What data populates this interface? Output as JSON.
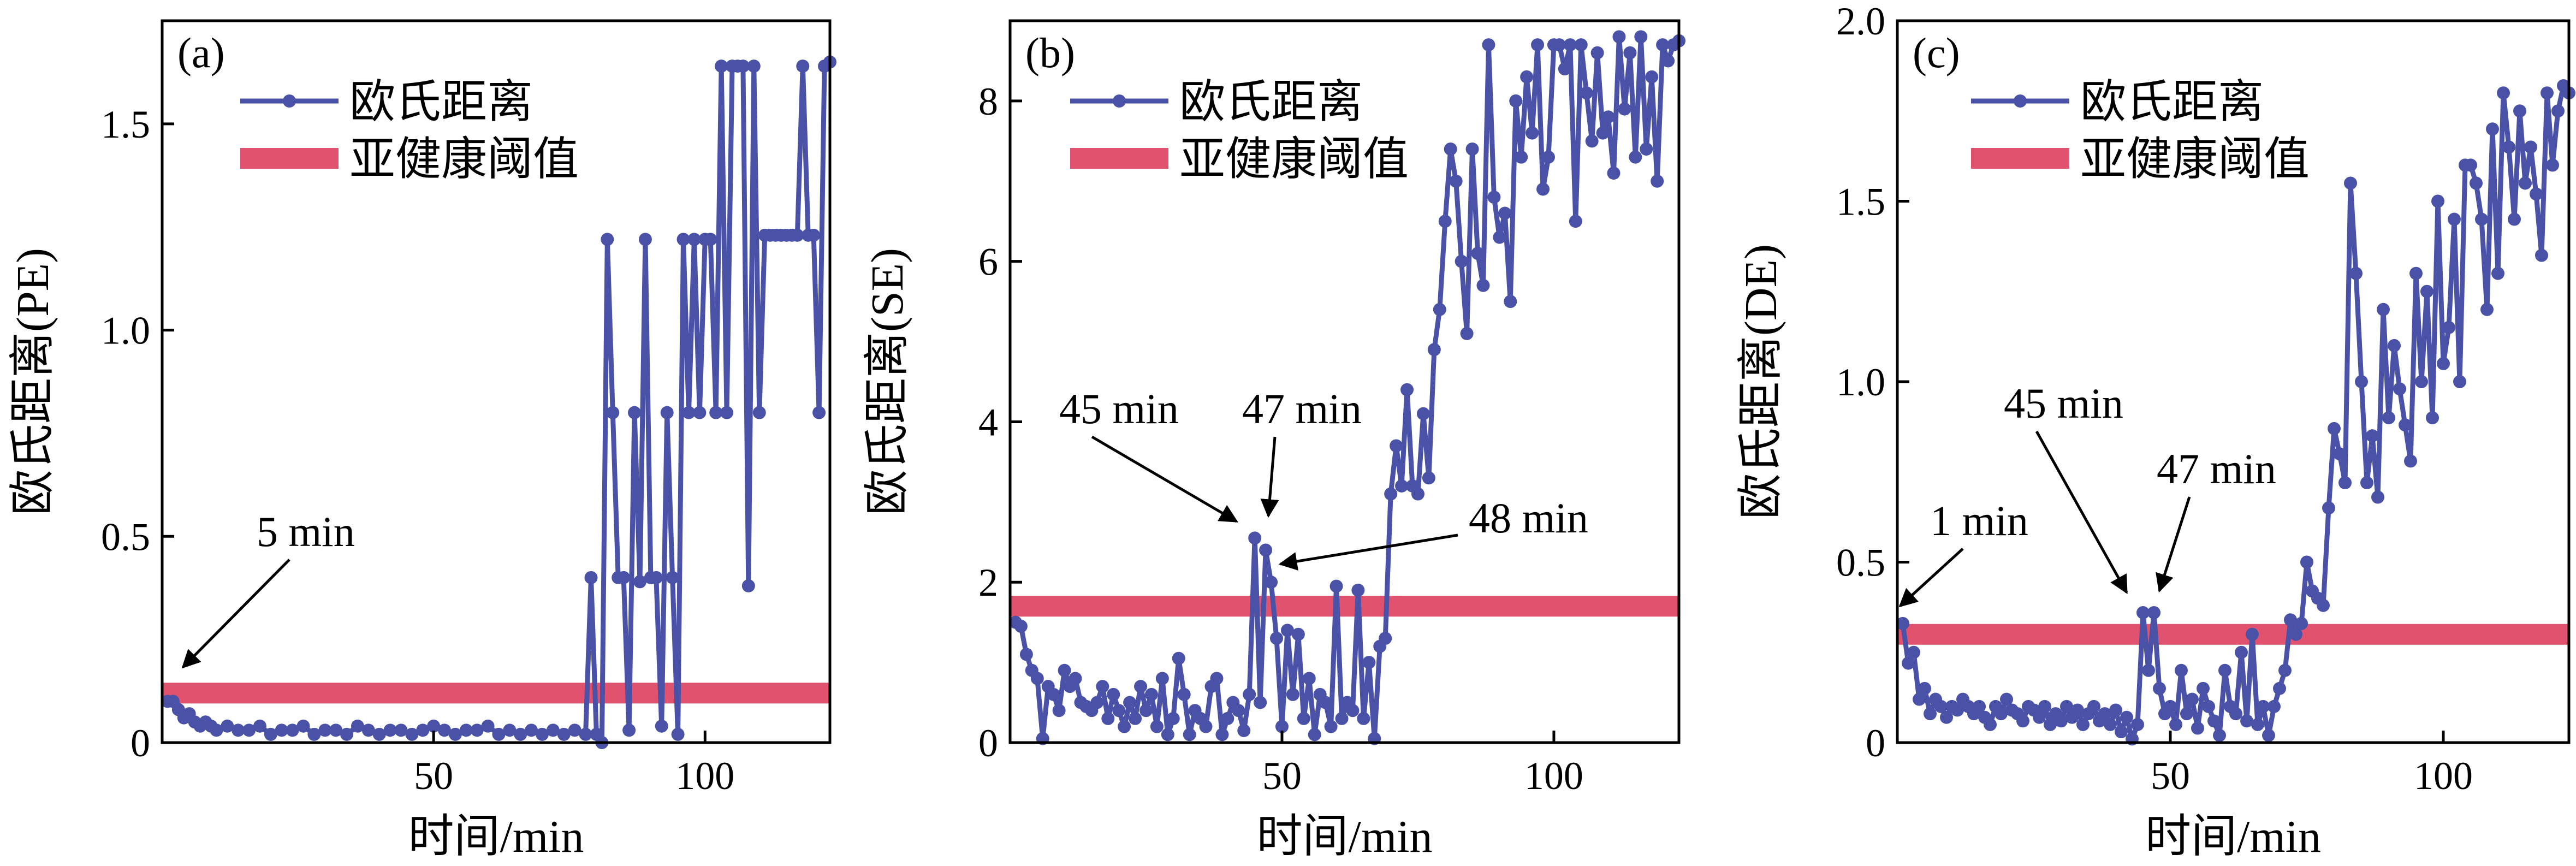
{
  "chart_data": [
    {
      "type": "line",
      "panel": "(a)",
      "xlabel": "时间/min",
      "ylabel": "欧氏距离(PE)",
      "xlim": [
        0,
        123
      ],
      "ylim": [
        0,
        1.75
      ],
      "xticks": [
        "50",
        "100"
      ],
      "xtick_values": [
        50,
        100
      ],
      "yticks": [
        "0",
        "0.5",
        "1.0",
        "1.5"
      ],
      "ytick_values": [
        0,
        0.5,
        1.0,
        1.5
      ],
      "threshold": 0.12,
      "legend": {
        "series": "欧氏距离",
        "threshold": "亚健康阈值",
        "placement": "top-left"
      },
      "annotations": [
        {
          "text": "5 min",
          "x": 5,
          "y": 0.1
        }
      ],
      "series": {
        "name": "欧氏距离",
        "x": [
          1,
          2,
          3,
          4,
          5,
          6,
          7,
          8,
          9,
          10,
          12,
          14,
          16,
          18,
          20,
          22,
          24,
          26,
          28,
          30,
          32,
          34,
          36,
          38,
          40,
          42,
          44,
          46,
          48,
          50,
          52,
          54,
          56,
          58,
          60,
          62,
          64,
          66,
          68,
          70,
          72,
          74,
          76,
          78,
          79,
          80,
          81,
          82,
          83,
          84,
          85,
          86,
          87,
          88,
          89,
          90,
          91,
          92,
          93,
          94,
          95,
          96,
          97,
          98,
          99,
          100,
          101,
          102,
          103,
          104,
          105,
          106,
          107,
          108,
          109,
          110,
          111,
          112,
          113,
          114,
          115,
          116,
          117,
          118,
          119,
          120,
          121,
          122,
          123
        ],
        "y": [
          0.1,
          0.1,
          0.08,
          0.06,
          0.07,
          0.05,
          0.04,
          0.05,
          0.04,
          0.03,
          0.04,
          0.03,
          0.03,
          0.04,
          0.02,
          0.03,
          0.03,
          0.04,
          0.02,
          0.03,
          0.03,
          0.02,
          0.04,
          0.03,
          0.02,
          0.03,
          0.03,
          0.02,
          0.03,
          0.04,
          0.03,
          0.02,
          0.03,
          0.03,
          0.04,
          0.02,
          0.03,
          0.02,
          0.03,
          0.02,
          0.03,
          0.02,
          0.03,
          0.02,
          0.4,
          0.02,
          0.0,
          1.22,
          0.8,
          0.4,
          0.4,
          0.03,
          0.8,
          0.39,
          1.22,
          0.4,
          0.4,
          0.04,
          0.8,
          0.4,
          0.02,
          1.22,
          0.8,
          1.22,
          0.8,
          1.22,
          1.22,
          0.8,
          1.64,
          0.8,
          1.64,
          1.64,
          1.64,
          0.38,
          1.64,
          0.8,
          1.23,
          1.23,
          1.23,
          1.23,
          1.23,
          1.23,
          1.23,
          1.64,
          1.23,
          1.23,
          0.8,
          1.64,
          1.65
        ]
      }
    },
    {
      "type": "line",
      "panel": "(b)",
      "xlabel": "时间/min",
      "ylabel": "欧氏距离(SE)",
      "xlim": [
        0,
        123
      ],
      "ylim": [
        0,
        9.0
      ],
      "xticks": [
        "50",
        "100"
      ],
      "xtick_values": [
        50,
        100
      ],
      "yticks": [
        "0",
        "2",
        "4",
        "6",
        "8"
      ],
      "ytick_values": [
        0,
        2,
        4,
        6,
        8
      ],
      "threshold": 1.7,
      "legend": {
        "series": "欧氏距离",
        "threshold": "亚健康阈值",
        "placement": "top-left"
      },
      "annotations": [
        {
          "text": "45 min",
          "x": 45,
          "y": 2.55
        },
        {
          "text": "47 min",
          "x": 47,
          "y": 2.4
        },
        {
          "text": "48 min",
          "x": 48,
          "y": 2.0
        }
      ],
      "series": {
        "name": "欧氏距离",
        "x": [
          1,
          2,
          3,
          4,
          5,
          6,
          7,
          8,
          9,
          10,
          11,
          12,
          13,
          14,
          15,
          16,
          17,
          18,
          19,
          20,
          21,
          22,
          23,
          24,
          25,
          26,
          27,
          28,
          29,
          30,
          31,
          32,
          33,
          34,
          35,
          36,
          37,
          38,
          39,
          40,
          41,
          42,
          43,
          44,
          45,
          46,
          47,
          48,
          49,
          50,
          51,
          52,
          53,
          54,
          55,
          56,
          57,
          58,
          59,
          60,
          61,
          62,
          63,
          64,
          65,
          66,
          67,
          68,
          69,
          70,
          71,
          72,
          73,
          74,
          75,
          76,
          77,
          78,
          79,
          80,
          81,
          82,
          83,
          84,
          85,
          86,
          87,
          88,
          89,
          90,
          91,
          92,
          93,
          94,
          95,
          96,
          97,
          98,
          99,
          100,
          101,
          102,
          103,
          104,
          105,
          106,
          107,
          108,
          109,
          110,
          111,
          112,
          113,
          114,
          115,
          116,
          117,
          118,
          119,
          120,
          121,
          122,
          123
        ],
        "y": [
          1.5,
          1.45,
          1.1,
          0.9,
          0.8,
          0.05,
          0.7,
          0.6,
          0.4,
          0.9,
          0.7,
          0.8,
          0.5,
          0.45,
          0.4,
          0.5,
          0.7,
          0.3,
          0.6,
          0.4,
          0.2,
          0.5,
          0.3,
          0.7,
          0.4,
          0.6,
          0.2,
          0.8,
          0.1,
          0.3,
          1.05,
          0.6,
          0.1,
          0.4,
          0.3,
          0.2,
          0.7,
          0.8,
          0.1,
          0.3,
          0.5,
          0.4,
          0.15,
          0.6,
          2.55,
          0.5,
          2.4,
          2.0,
          1.3,
          0.2,
          1.4,
          0.6,
          1.35,
          0.3,
          0.8,
          0.1,
          0.6,
          0.5,
          0.2,
          1.95,
          0.3,
          0.5,
          0.4,
          1.9,
          0.3,
          1.0,
          0.05,
          1.2,
          1.3,
          3.1,
          3.7,
          3.2,
          4.4,
          3.2,
          3.1,
          4.1,
          3.3,
          4.9,
          5.4,
          6.5,
          7.4,
          7.0,
          6.0,
          5.1,
          7.4,
          6.1,
          5.7,
          8.7,
          6.8,
          6.3,
          6.6,
          5.5,
          8.0,
          7.3,
          8.3,
          7.6,
          8.7,
          6.9,
          7.3,
          8.7,
          8.7,
          8.4,
          8.7,
          6.5,
          8.7,
          8.1,
          7.5,
          8.6,
          7.6,
          7.8,
          7.1,
          8.8,
          7.9,
          8.6,
          7.3,
          8.8,
          7.4,
          8.3,
          7.0,
          8.7,
          8.5,
          8.7,
          8.75
        ]
      }
    },
    {
      "type": "line",
      "panel": "(c)",
      "xlabel": "时间/min",
      "ylabel": "欧氏距离(DE)",
      "xlim": [
        0,
        123
      ],
      "ylim": [
        0,
        2.0
      ],
      "xticks": [
        "50",
        "100"
      ],
      "xtick_values": [
        50,
        100
      ],
      "yticks": [
        "0",
        "0.5",
        "1.0",
        "1.5",
        "2.0"
      ],
      "ytick_values": [
        0,
        0.5,
        1.0,
        1.5,
        2.0
      ],
      "threshold": 0.3,
      "legend": {
        "series": "欧氏距离",
        "threshold": "亚健康阈值",
        "placement": "top-left"
      },
      "annotations": [
        {
          "text": "1 min",
          "x": 1,
          "y": 0.33
        },
        {
          "text": "45 min",
          "x": 45,
          "y": 0.36
        },
        {
          "text": "47 min",
          "x": 47,
          "y": 0.36
        }
      ],
      "series": {
        "name": "欧氏距离",
        "x": [
          1,
          2,
          3,
          4,
          5,
          6,
          7,
          8,
          9,
          10,
          11,
          12,
          13,
          14,
          15,
          16,
          17,
          18,
          19,
          20,
          21,
          22,
          23,
          24,
          25,
          26,
          27,
          28,
          29,
          30,
          31,
          32,
          33,
          34,
          35,
          36,
          37,
          38,
          39,
          40,
          41,
          42,
          43,
          44,
          45,
          46,
          47,
          48,
          49,
          50,
          51,
          52,
          53,
          54,
          55,
          56,
          57,
          58,
          59,
          60,
          61,
          62,
          63,
          64,
          65,
          66,
          67,
          68,
          69,
          70,
          71,
          72,
          73,
          74,
          75,
          76,
          77,
          78,
          79,
          80,
          81,
          82,
          83,
          84,
          85,
          86,
          87,
          88,
          89,
          90,
          91,
          92,
          93,
          94,
          95,
          96,
          97,
          98,
          99,
          100,
          101,
          102,
          103,
          104,
          105,
          106,
          107,
          108,
          109,
          110,
          111,
          112,
          113,
          114,
          115,
          116,
          117,
          118,
          119,
          120,
          121,
          122,
          123
        ],
        "y": [
          0.33,
          0.22,
          0.25,
          0.12,
          0.15,
          0.08,
          0.12,
          0.1,
          0.07,
          0.1,
          0.09,
          0.12,
          0.1,
          0.08,
          0.1,
          0.07,
          0.05,
          0.1,
          0.08,
          0.12,
          0.09,
          0.08,
          0.06,
          0.1,
          0.09,
          0.07,
          0.1,
          0.05,
          0.08,
          0.06,
          0.1,
          0.07,
          0.09,
          0.05,
          0.08,
          0.1,
          0.06,
          0.08,
          0.05,
          0.09,
          0.03,
          0.07,
          0.01,
          0.05,
          0.36,
          0.2,
          0.36,
          0.15,
          0.08,
          0.1,
          0.05,
          0.2,
          0.08,
          0.12,
          0.04,
          0.15,
          0.1,
          0.06,
          0.02,
          0.2,
          0.1,
          0.08,
          0.25,
          0.06,
          0.3,
          0.05,
          0.1,
          0.02,
          0.1,
          0.15,
          0.2,
          0.34,
          0.3,
          0.33,
          0.5,
          0.42,
          0.4,
          0.38,
          0.65,
          0.87,
          0.8,
          0.72,
          1.55,
          1.3,
          1.0,
          0.72,
          0.85,
          0.68,
          1.2,
          0.9,
          1.1,
          0.98,
          0.88,
          0.78,
          1.3,
          1.0,
          1.25,
          0.9,
          1.5,
          1.05,
          1.15,
          1.45,
          1.0,
          1.6,
          1.6,
          1.55,
          1.45,
          1.2,
          1.7,
          1.3,
          1.8,
          1.65,
          1.45,
          1.75,
          1.55,
          1.65,
          1.52,
          1.35,
          1.8,
          1.6,
          1.75,
          1.82,
          1.8
        ]
      }
    }
  ]
}
